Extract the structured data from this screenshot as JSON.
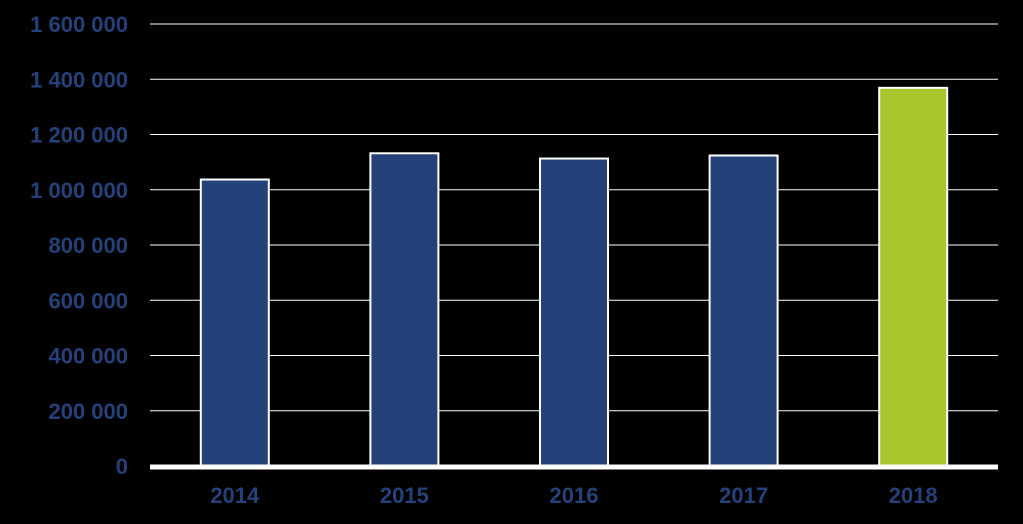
{
  "chart_data": {
    "type": "bar",
    "title": "",
    "xlabel": "",
    "ylabel": "",
    "categories": [
      "2014",
      "2015",
      "2016",
      "2017",
      "2018"
    ],
    "values": [
      1037000,
      1132000,
      1113000,
      1124000,
      1369000
    ],
    "ylim": [
      0,
      1600000
    ],
    "yticks": [
      0,
      200000,
      400000,
      600000,
      800000,
      1000000,
      1200000,
      1400000,
      1600000
    ],
    "ytick_labels": [
      "0",
      "200 000",
      "400 000",
      "600 000",
      "800 000",
      "1 000 000",
      "1 200 000",
      "1 400 000",
      "1 600 000"
    ],
    "grid": true,
    "legend": "none",
    "colors": {
      "background": "#000000",
      "bar_default": "#24417a",
      "bar_highlight": "#a6c62b",
      "bar_outline": "#ffffff",
      "gridline": "#ffffff",
      "axis_text": "#24417a"
    },
    "bar_colors": [
      "#24417a",
      "#24417a",
      "#24417a",
      "#24417a",
      "#a6c62b"
    ]
  }
}
